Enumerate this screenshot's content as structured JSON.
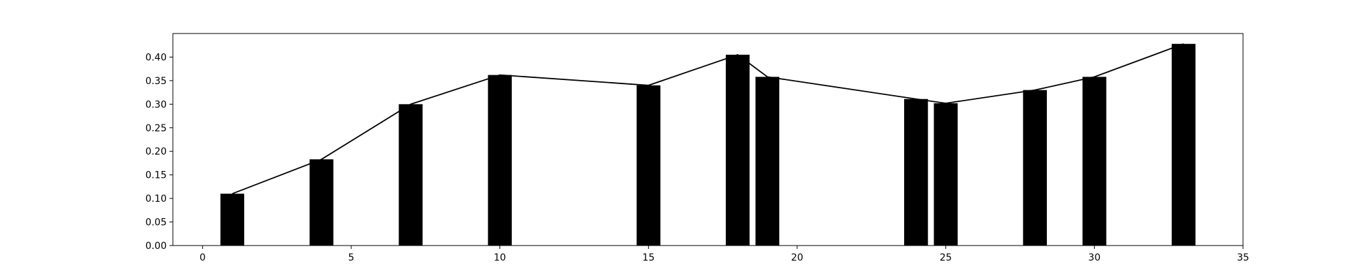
{
  "chart_data": {
    "type": "bar",
    "x": [
      1,
      4,
      7,
      10,
      15,
      18,
      19,
      24,
      25,
      28,
      30,
      33
    ],
    "values": [
      0.11,
      0.183,
      0.3,
      0.362,
      0.34,
      0.405,
      0.358,
      0.311,
      0.302,
      0.33,
      0.358,
      0.428
    ],
    "overlay_line": true,
    "bar_color": "#000000",
    "line_color": "#000000",
    "xlim": [
      -1,
      35
    ],
    "ylim": [
      0,
      0.45
    ],
    "xticks": [
      "0",
      "5",
      "10",
      "15",
      "20",
      "25",
      "30",
      "35"
    ],
    "yticks": [
      "0.00",
      "0.05",
      "0.10",
      "0.15",
      "0.20",
      "0.25",
      "0.30",
      "0.35",
      "0.40"
    ],
    "title": "",
    "xlabel": "",
    "ylabel": "",
    "grid": false,
    "legend": "none"
  }
}
